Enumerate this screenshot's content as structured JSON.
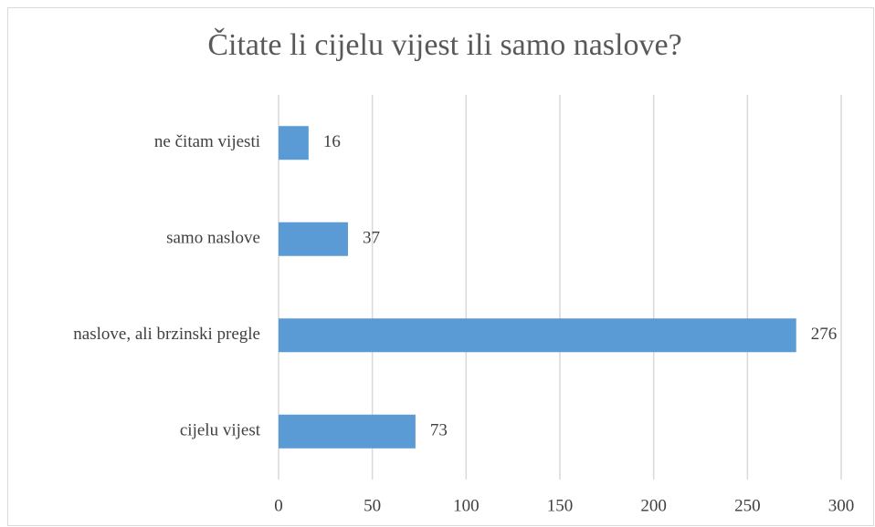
{
  "chart_data": {
    "type": "hbar",
    "title": "Čitate li cijelu vijest ili samo naslove?",
    "categories": [
      "cijelu vijest",
      "naslove, ali brzinski pregle",
      "samo naslove",
      "ne čitam vijesti"
    ],
    "values": [
      73,
      276,
      37,
      16
    ],
    "color": "#5b9bd5",
    "xlim": [
      0,
      300
    ],
    "xticks": [
      0,
      50,
      100,
      150,
      200,
      250,
      300
    ],
    "grid": true
  }
}
